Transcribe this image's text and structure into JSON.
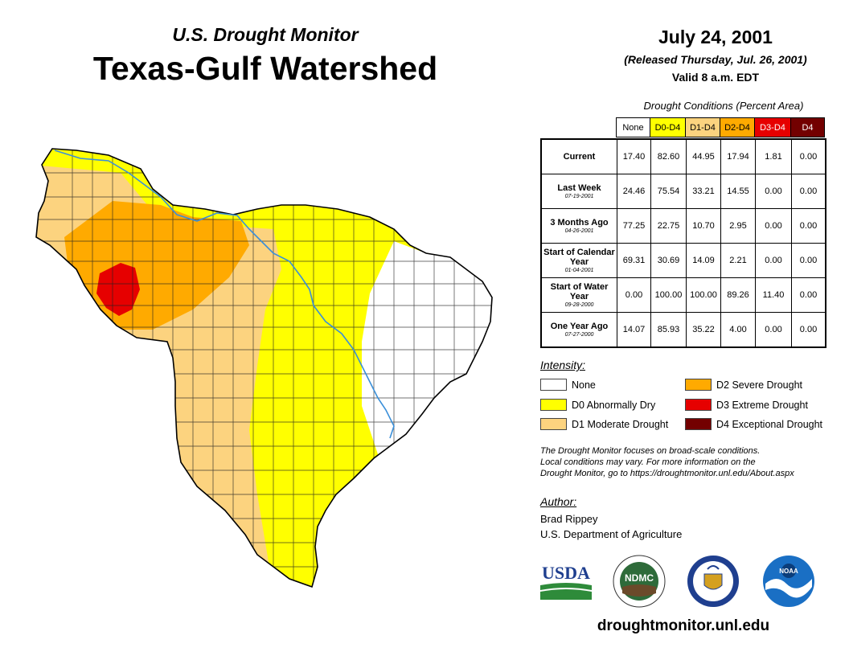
{
  "header": {
    "subtitle": "U.S. Drought Monitor",
    "title": "Texas-Gulf Watershed",
    "date": "July 24, 2001",
    "released": "(Released Thursday, Jul. 26, 2001)",
    "valid": "Valid 8 a.m. EDT"
  },
  "table": {
    "caption": "Drought Conditions (Percent Area)",
    "columns": [
      {
        "label": "None",
        "color": "#ffffff",
        "text_color": "#000000"
      },
      {
        "label": "D0-D4",
        "color": "#ffff00",
        "text_color": "#000000"
      },
      {
        "label": "D1-D4",
        "color": "#fcd37f",
        "text_color": "#000000"
      },
      {
        "label": "D2-D4",
        "color": "#ffaa00",
        "text_color": "#000000"
      },
      {
        "label": "D3-D4",
        "color": "#e60000",
        "text_color": "#ffffff"
      },
      {
        "label": "D4",
        "color": "#730000",
        "text_color": "#ffffff"
      }
    ],
    "rows": [
      {
        "label": "Current",
        "sub": "",
        "values": [
          "17.40",
          "82.60",
          "44.95",
          "17.94",
          "1.81",
          "0.00"
        ]
      },
      {
        "label": "Last Week",
        "sub": "07-19-2001",
        "values": [
          "24.46",
          "75.54",
          "33.21",
          "14.55",
          "0.00",
          "0.00"
        ]
      },
      {
        "label": "3 Months Ago",
        "sub": "04-26-2001",
        "values": [
          "77.25",
          "22.75",
          "10.70",
          "2.95",
          "0.00",
          "0.00"
        ]
      },
      {
        "label": "Start of Calendar Year",
        "sub": "01-04-2001",
        "values": [
          "69.31",
          "30.69",
          "14.09",
          "2.21",
          "0.00",
          "0.00"
        ]
      },
      {
        "label": "Start of Water Year",
        "sub": "09-28-2000",
        "values": [
          "0.00",
          "100.00",
          "100.00",
          "89.26",
          "11.40",
          "0.00"
        ]
      },
      {
        "label": "One Year Ago",
        "sub": "07-27-2000",
        "values": [
          "14.07",
          "85.93",
          "35.22",
          "4.00",
          "0.00",
          "0.00"
        ]
      }
    ]
  },
  "legend": {
    "title": "Intensity:",
    "items": [
      {
        "label": "None",
        "color": "#ffffff"
      },
      {
        "label": "D0 Abnormally Dry",
        "color": "#ffff00"
      },
      {
        "label": "D1 Moderate Drought",
        "color": "#fcd37f"
      },
      {
        "label": "D2 Severe Drought",
        "color": "#ffaa00"
      },
      {
        "label": "D3 Extreme Drought",
        "color": "#e60000"
      },
      {
        "label": "D4 Exceptional Drought",
        "color": "#730000"
      }
    ]
  },
  "note": {
    "line1": "The Drought Monitor focuses on broad-scale conditions.",
    "line2": "Local conditions may vary. For more information on the",
    "line3": "Drought Monitor, go to https://droughtmonitor.unl.edu/About.aspx"
  },
  "author": {
    "title": "Author:",
    "name": "Brad Rippey",
    "org": "U.S. Department of Agriculture"
  },
  "logos": {
    "usda": "USDA",
    "ndmc": "NDMC",
    "noaa": "NOAA"
  },
  "footer": {
    "url": "droughtmonitor.unl.edu"
  },
  "colors": {
    "none": "#ffffff",
    "d0": "#ffff00",
    "d1": "#fcd37f",
    "d2": "#ffaa00",
    "d3": "#e60000",
    "d4": "#730000",
    "river": "#3a8fd9"
  }
}
